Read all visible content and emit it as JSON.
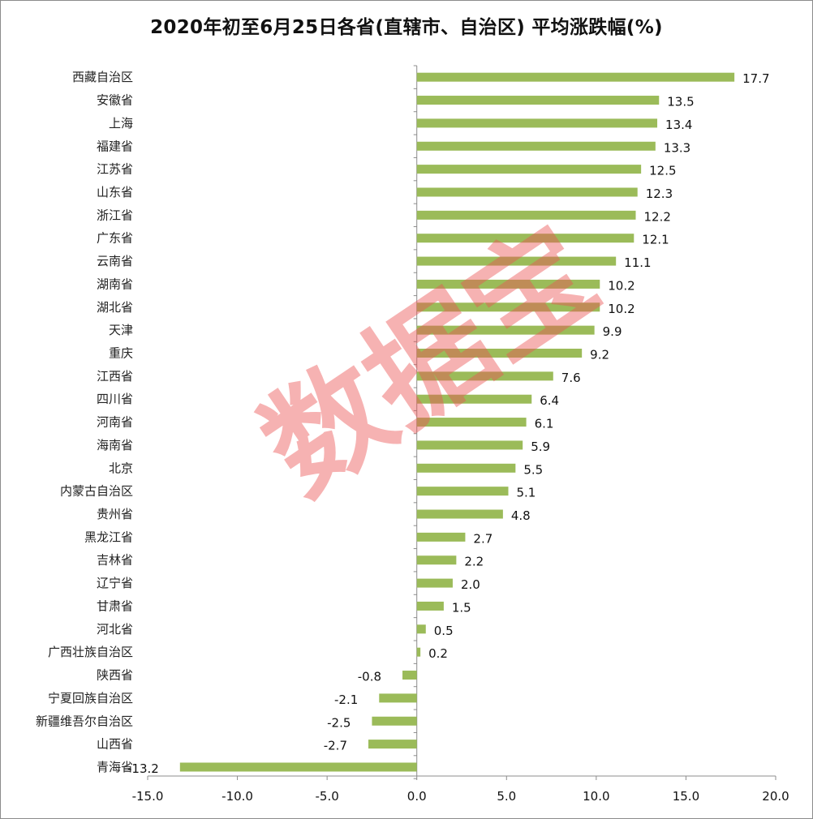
{
  "chart_data": {
    "type": "bar",
    "orientation": "horizontal",
    "title": "2020年初至6月25日各省(直辖市、自治区) 平均涨跌幅(%)",
    "categories": [
      "西藏自治区",
      "安徽省",
      "上海",
      "福建省",
      "江苏省",
      "山东省",
      "浙江省",
      "广东省",
      "云南省",
      "湖南省",
      "湖北省",
      "天津",
      "重庆",
      "江西省",
      "四川省",
      "河南省",
      "海南省",
      "北京",
      "内蒙古自治区",
      "贵州省",
      "黑龙江省",
      "吉林省",
      "辽宁省",
      "甘肃省",
      "河北省",
      "广西壮族自治区",
      "陕西省",
      "宁夏回族自治区",
      "新疆维吾尔自治区",
      "山西省",
      "青海省"
    ],
    "values": [
      17.7,
      13.5,
      13.4,
      13.3,
      12.5,
      12.3,
      12.2,
      12.1,
      11.1,
      10.2,
      10.2,
      9.9,
      9.2,
      7.6,
      6.4,
      6.1,
      5.9,
      5.5,
      5.1,
      4.8,
      2.7,
      2.2,
      2.0,
      1.5,
      0.5,
      0.2,
      -0.8,
      -2.1,
      -2.5,
      -2.7,
      -13.2
    ],
    "value_labels": [
      "17.7",
      "13.5",
      "13.4",
      "13.3",
      "12.5",
      "12.3",
      "12.2",
      "12.1",
      "11.1",
      "10.2",
      "10.2",
      "9.9",
      "9.2",
      "7.6",
      "6.4",
      "6.1",
      "5.9",
      "5.5",
      "5.1",
      "4.8",
      "2.7",
      "2.2",
      "2.0",
      "1.5",
      "0.5",
      "0.2",
      "-0.8",
      "-2.1",
      "-2.5",
      "-2.7",
      "-13.2"
    ],
    "xlim": [
      -15,
      20
    ],
    "x_ticks": [
      -15,
      -10,
      -5,
      0,
      5,
      10,
      15,
      20
    ],
    "x_tick_labels": [
      "-15.0",
      "-10.0",
      "-5.0",
      "0.0",
      "5.0",
      "10.0",
      "15.0",
      "20.0"
    ],
    "bar_color": "#9bbb59",
    "grid": false,
    "legend": "none"
  },
  "watermark": "数据宝"
}
